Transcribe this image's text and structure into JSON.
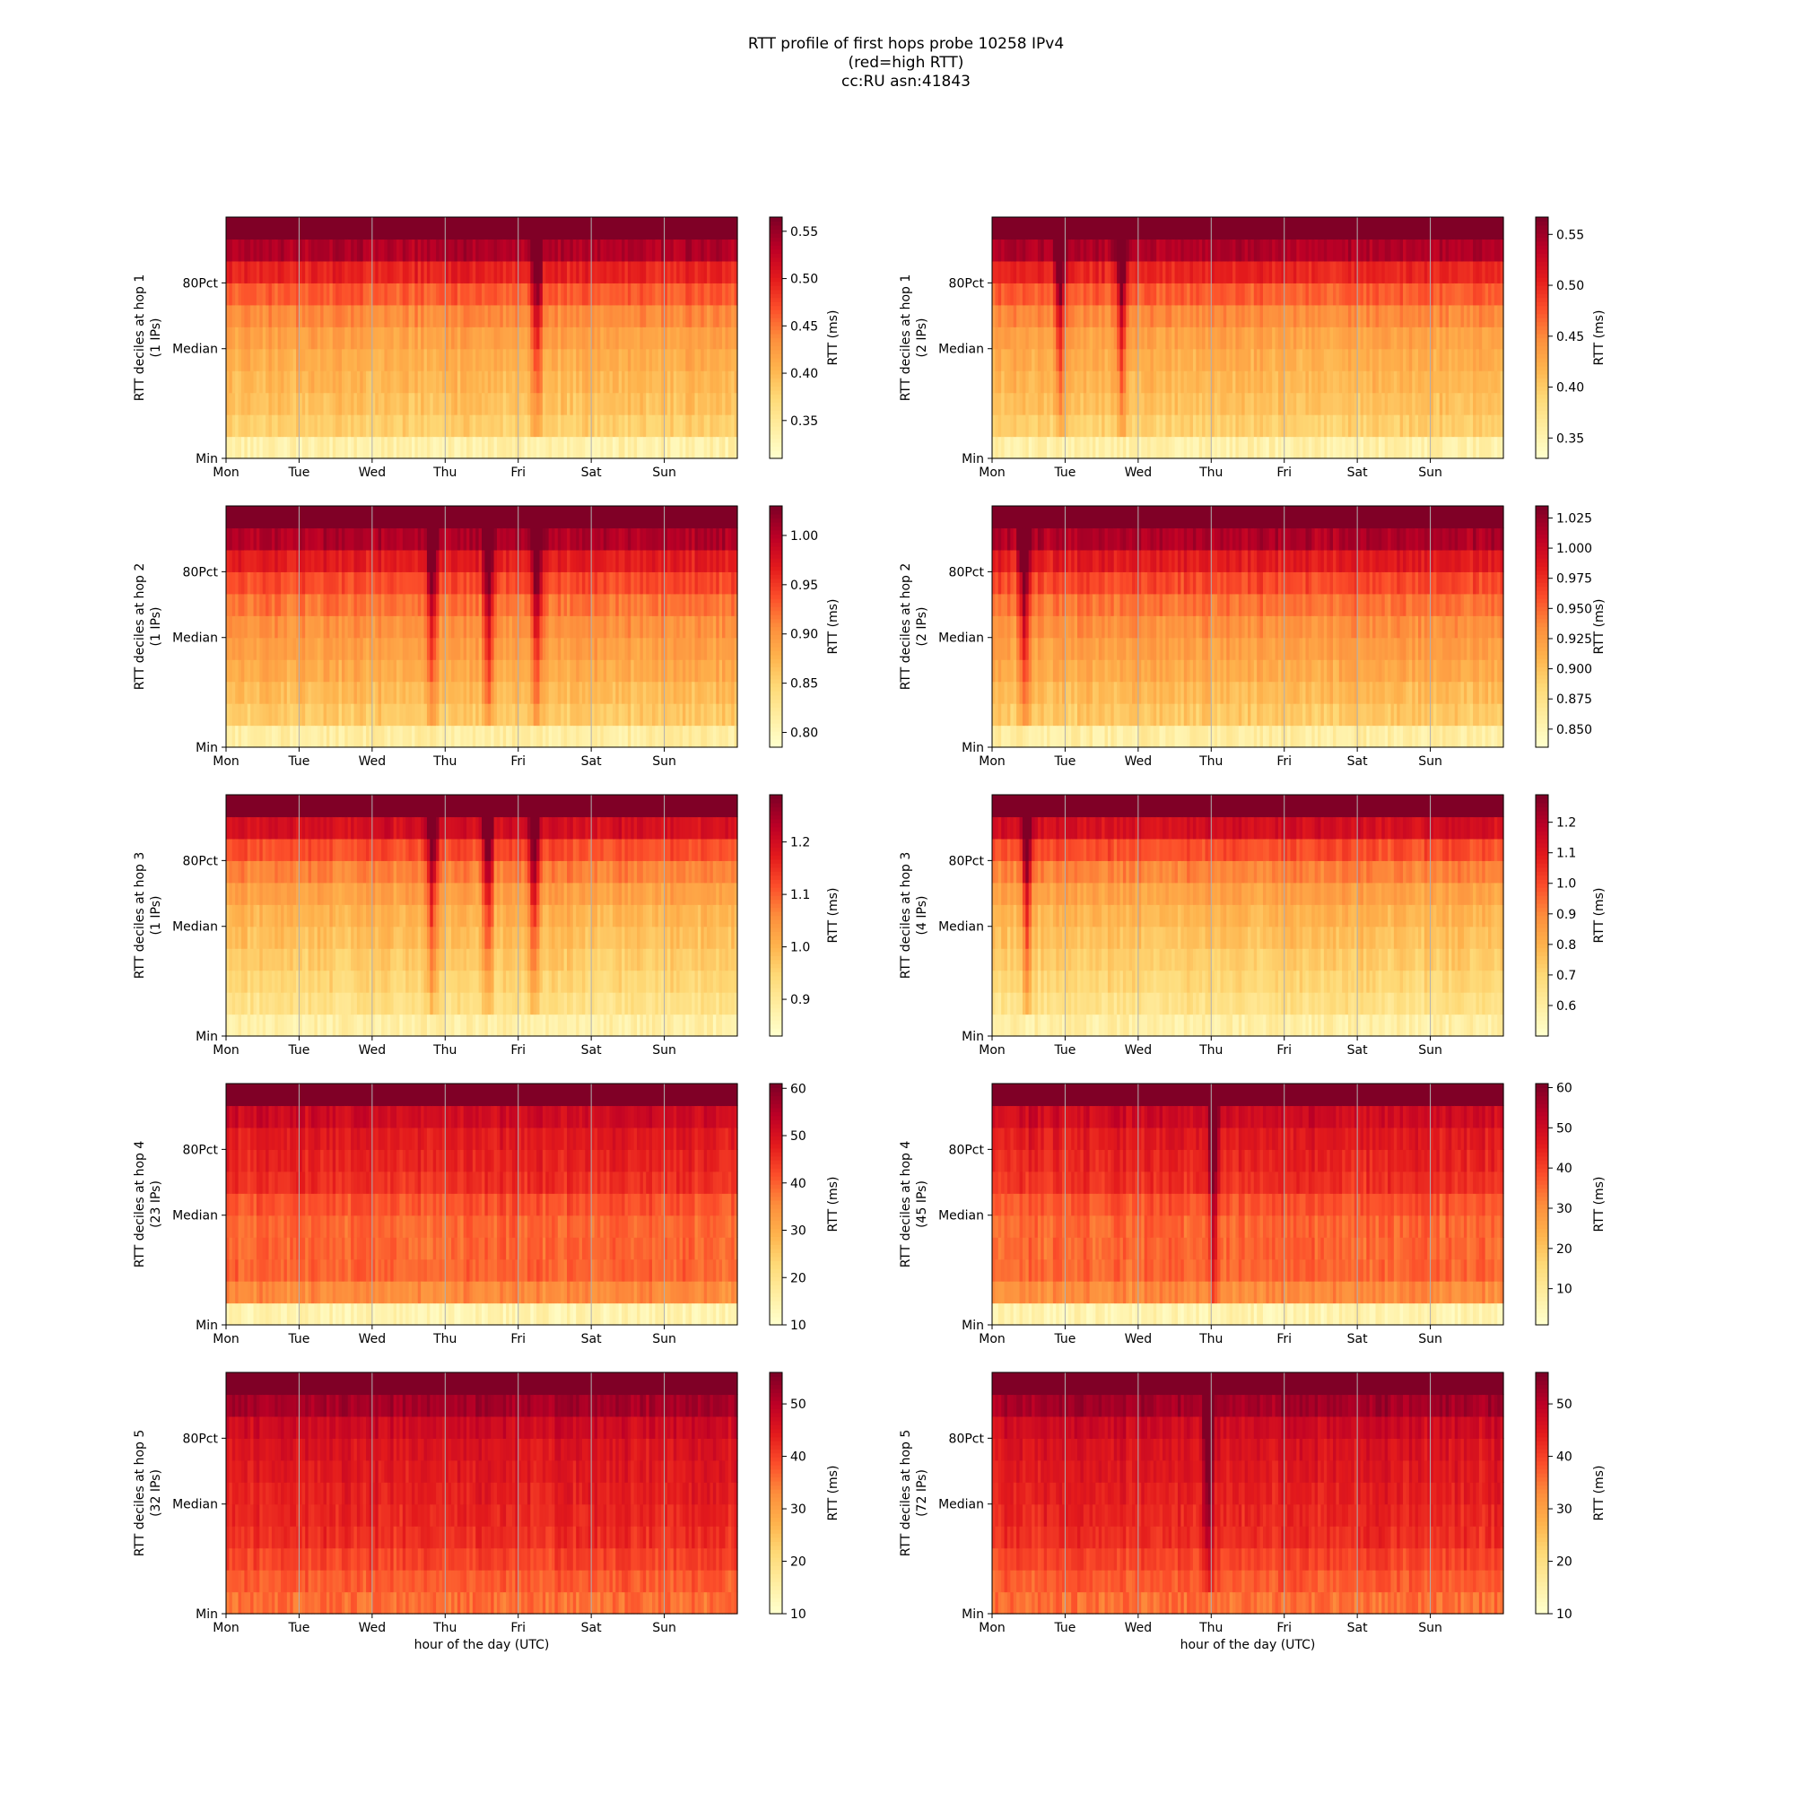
{
  "title": {
    "line1": "RTT profile of first hops probe 10258 IPv4",
    "line2": "(red=high RTT)",
    "line3": "cc:RU asn:41843"
  },
  "chart_data": {
    "type": "heatmap",
    "x_ticks": [
      "Mon",
      "Tue",
      "Wed",
      "Thu",
      "Fri",
      "Sat",
      "Sun"
    ],
    "y_ticks": [
      "Min",
      "Median",
      "80Pct"
    ],
    "xlabel": "hour of the day (UTC)",
    "colorbar_label": "RTT (ms)",
    "colormap": "YlOrRd",
    "panels": [
      {
        "hop": 1,
        "ylabel": "RTT deciles at hop 1",
        "ips": "(1 IPs)",
        "range": [
          0.31,
          0.565
        ],
        "cbar_ticks": [
          "0.35",
          "0.40",
          "0.45",
          "0.50",
          "0.55"
        ],
        "cbar_values": [
          0.35,
          0.4,
          0.45,
          0.5,
          0.55
        ],
        "spikes": [
          0.605
        ]
      },
      {
        "hop": 1,
        "ylabel": "RTT deciles at hop 1",
        "ips": "(2 IPs)",
        "range": [
          0.33,
          0.567
        ],
        "cbar_ticks": [
          "0.35",
          "0.40",
          "0.45",
          "0.50",
          "0.55"
        ],
        "cbar_values": [
          0.35,
          0.4,
          0.45,
          0.5,
          0.55
        ],
        "spikes": [
          0.13,
          0.25
        ]
      },
      {
        "hop": 2,
        "ylabel": "RTT deciles at hop 2",
        "ips": "(1 IPs)",
        "range": [
          0.785,
          1.03
        ],
        "cbar_ticks": [
          "0.80",
          "0.85",
          "0.90",
          "0.95",
          "1.00"
        ],
        "cbar_values": [
          0.8,
          0.85,
          0.9,
          0.95,
          1.0
        ],
        "spikes": [
          0.4,
          0.51,
          0.605
        ]
      },
      {
        "hop": 2,
        "ylabel": "RTT deciles at hop 2",
        "ips": "(2 IPs)",
        "range": [
          0.835,
          1.035
        ],
        "cbar_ticks": [
          "0.850",
          "0.875",
          "0.900",
          "0.925",
          "0.950",
          "0.975",
          "1.000",
          "1.025"
        ],
        "cbar_values": [
          0.85,
          0.875,
          0.9,
          0.925,
          0.95,
          0.975,
          1.0,
          1.025
        ],
        "spikes": [
          0.06
        ]
      },
      {
        "hop": 3,
        "ylabel": "RTT deciles at hop 3",
        "ips": "(1 IPs)",
        "range": [
          0.83,
          1.29
        ],
        "cbar_ticks": [
          "0.9",
          "1.0",
          "1.1",
          "1.2"
        ],
        "cbar_values": [
          0.9,
          1.0,
          1.1,
          1.2
        ],
        "spikes": [
          0.4,
          0.51,
          0.6
        ]
      },
      {
        "hop": 3,
        "ylabel": "RTT deciles at hop 3",
        "ips": "(4 IPs)",
        "range": [
          0.5,
          1.29
        ],
        "cbar_ticks": [
          "0.6",
          "0.7",
          "0.8",
          "0.9",
          "1.0",
          "1.1",
          "1.2"
        ],
        "cbar_values": [
          0.6,
          0.7,
          0.8,
          0.9,
          1.0,
          1.1,
          1.2
        ],
        "spikes": [
          0.065
        ]
      },
      {
        "hop": 4,
        "ylabel": "RTT deciles at hop 4",
        "ips": "(23 IPs)",
        "range": [
          10,
          61
        ],
        "cbar_ticks": [
          "10",
          "20",
          "30",
          "40",
          "50",
          "60"
        ],
        "cbar_values": [
          10,
          20,
          30,
          40,
          50,
          60
        ],
        "spikes": []
      },
      {
        "hop": 4,
        "ylabel": "RTT deciles at hop 4",
        "ips": "(45 IPs)",
        "range": [
          1,
          61
        ],
        "cbar_ticks": [
          "10",
          "20",
          "30",
          "40",
          "50",
          "60"
        ],
        "cbar_values": [
          10,
          20,
          30,
          40,
          50,
          60
        ],
        "spikes": [
          0.43
        ]
      },
      {
        "hop": 5,
        "ylabel": "RTT deciles at hop 5",
        "ips": "(32 IPs)",
        "range": [
          10,
          56
        ],
        "cbar_ticks": [
          "10",
          "20",
          "30",
          "40",
          "50"
        ],
        "cbar_values": [
          10,
          20,
          30,
          40,
          50
        ],
        "spikes": []
      },
      {
        "hop": 5,
        "ylabel": "RTT deciles at hop 5",
        "ips": "(72 IPs)",
        "range": [
          10,
          56
        ],
        "cbar_ticks": [
          "10",
          "20",
          "30",
          "40",
          "50"
        ],
        "cbar_values": [
          10,
          20,
          30,
          40,
          50
        ],
        "spikes": [
          0.42
        ]
      }
    ]
  }
}
